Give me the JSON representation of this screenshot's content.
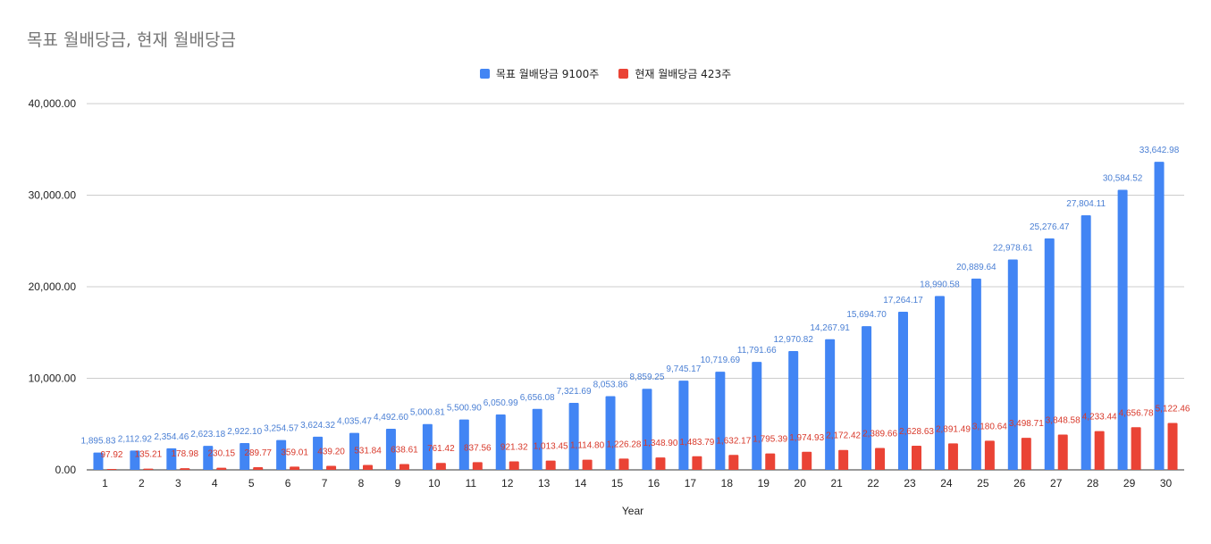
{
  "chart_data": {
    "type": "bar",
    "title": "목표 월배당금, 현재 월배당금",
    "xlabel": "Year",
    "ylabel": "",
    "ylim": [
      0,
      40000
    ],
    "yticks": [
      "0.00",
      "10,000.00",
      "20,000.00",
      "30,000.00",
      "40,000.00"
    ],
    "yticks_values": [
      0,
      10000,
      20000,
      30000,
      40000
    ],
    "grid": true,
    "legend_position": "top",
    "categories": [
      "1",
      "2",
      "3",
      "4",
      "5",
      "6",
      "7",
      "8",
      "9",
      "10",
      "11",
      "12",
      "13",
      "14",
      "15",
      "16",
      "17",
      "18",
      "19",
      "20",
      "21",
      "22",
      "23",
      "24",
      "25",
      "26",
      "27",
      "28",
      "29",
      "30"
    ],
    "series": [
      {
        "name": "목표 월배당금 9100주",
        "color": "#4285f4",
        "label_color": "#4a7fd4",
        "values": [
          1895.83,
          2112.92,
          2354.46,
          2623.18,
          2922.1,
          3254.57,
          3624.32,
          4035.47,
          4492.6,
          5000.81,
          5500.9,
          6050.99,
          6656.08,
          7321.69,
          8053.86,
          8859.25,
          9745.17,
          10719.69,
          11791.66,
          12970.82,
          14267.91,
          15694.7,
          17264.17,
          18990.58,
          20889.64,
          22978.61,
          25276.47,
          27804.11,
          30584.52,
          33642.98
        ],
        "labels": [
          "1,895.83",
          "2,112.92",
          "2,354.46",
          "2,623.18",
          "2,922.10",
          "3,254.57",
          "3,624.32",
          "4,035.47",
          "4,492.60",
          "5,000.81",
          "5,500.90",
          "6,050.99",
          "6,656.08",
          "7,321.69",
          "8,053.86",
          "8,859.25",
          "9,745.17",
          "10,719.69",
          "11,791.66",
          "12,970.82",
          "14,267.91",
          "15,694.70",
          "17,264.17",
          "18,990.58",
          "20,889.64",
          "22,978.61",
          "25,276.47",
          "27,804.11",
          "30,584.52",
          "33,642.98"
        ]
      },
      {
        "name": "현재 월배당금 423주",
        "color": "#ea4335",
        "label_color": "#d8382a",
        "values": [
          97.92,
          135.21,
          178.98,
          230.15,
          289.77,
          359.01,
          439.2,
          531.84,
          638.61,
          761.42,
          837.56,
          921.32,
          1013.45,
          1114.8,
          1226.28,
          1348.9,
          1483.79,
          1632.17,
          1795.39,
          1974.93,
          2172.42,
          2389.66,
          2628.63,
          2891.49,
          3180.64,
          3498.71,
          3848.58,
          4233.44,
          4656.78,
          5122.46
        ],
        "labels": [
          "97.92",
          "135.21",
          "178.98",
          "230.15",
          "289.77",
          "359.01",
          "439.20",
          "531.84",
          "638.61",
          "761.42",
          "837.56",
          "921.32",
          "1,013.45",
          "1,114.80",
          "1,226.28",
          "1,348.90",
          "1,483.79",
          "1,632.17",
          "1,795.39",
          "1,974.93",
          "2,172.42",
          "2,389.66",
          "2,628.63",
          "2,891.49",
          "3,180.64",
          "3,498.71",
          "3,848.58",
          "4,233.44",
          "4,656.78",
          "5,122.46"
        ]
      }
    ]
  }
}
